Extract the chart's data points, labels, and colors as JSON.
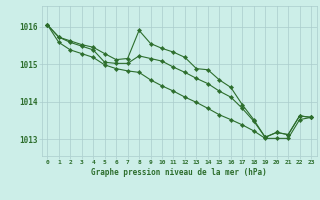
{
  "title": "Graphe pression niveau de la mer (hPa)",
  "bg_color": "#cceee8",
  "grid_color": "#aacccc",
  "line_color": "#2d6e2d",
  "xlim": [
    -0.5,
    23.5
  ],
  "ylim": [
    1012.55,
    1016.55
  ],
  "yticks": [
    1013,
    1014,
    1015,
    1016
  ],
  "xticks": [
    0,
    1,
    2,
    3,
    4,
    5,
    6,
    7,
    8,
    9,
    10,
    11,
    12,
    13,
    14,
    15,
    16,
    17,
    18,
    19,
    20,
    21,
    22,
    23
  ],
  "series1": [
    1016.05,
    1015.72,
    1015.62,
    1015.52,
    1015.45,
    1015.28,
    1015.12,
    1015.15,
    1015.9,
    1015.55,
    1015.42,
    1015.32,
    1015.18,
    1014.88,
    1014.85,
    1014.58,
    1014.38,
    1013.92,
    1013.52,
    1013.05,
    1013.18,
    1013.12,
    1013.62,
    1013.58
  ],
  "series2": [
    1016.05,
    1015.72,
    1015.58,
    1015.48,
    1015.38,
    1015.05,
    1015.02,
    1015.02,
    1015.22,
    1015.15,
    1015.08,
    1014.92,
    1014.78,
    1014.62,
    1014.48,
    1014.28,
    1014.12,
    1013.82,
    1013.48,
    1013.05,
    1013.18,
    1013.12,
    1013.62,
    1013.58
  ],
  "series3": [
    1016.05,
    1015.58,
    1015.38,
    1015.28,
    1015.18,
    1014.98,
    1014.88,
    1014.82,
    1014.78,
    1014.58,
    1014.42,
    1014.28,
    1014.12,
    1013.98,
    1013.82,
    1013.65,
    1013.52,
    1013.38,
    1013.22,
    1013.02,
    1013.02,
    1013.02,
    1013.52,
    1013.58
  ]
}
